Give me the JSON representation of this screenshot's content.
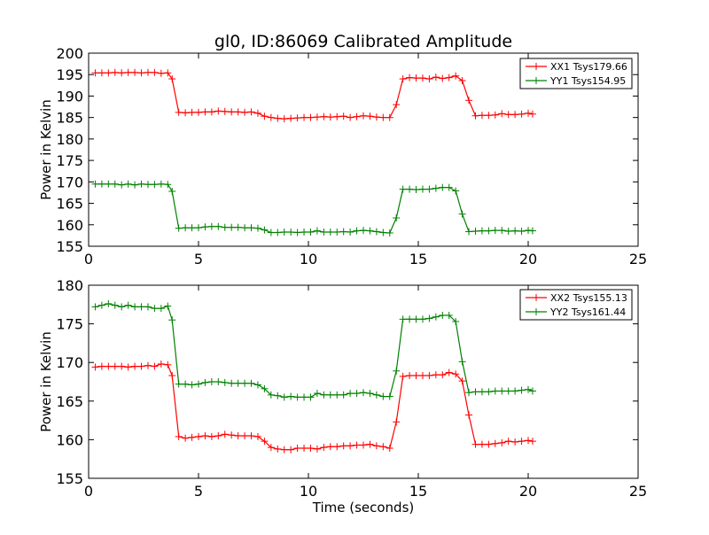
{
  "figure": {
    "title": "gl0, ID:86069 Calibrated Amplitude",
    "background": "#ffffff"
  },
  "chart_data": [
    {
      "type": "line",
      "title": "gl0, ID:86069 Calibrated Amplitude",
      "xlabel": "",
      "ylabel": "Power in Kelvin",
      "xlim": [
        0,
        25
      ],
      "ylim": [
        155,
        200
      ],
      "xticks": [
        0,
        5,
        10,
        15,
        20,
        25
      ],
      "yticks": [
        155,
        160,
        165,
        170,
        175,
        180,
        185,
        190,
        195,
        200
      ],
      "grid": false,
      "legend": "top-right",
      "series": [
        {
          "name": "XX1 Tsys179.66",
          "color": "#ff0000",
          "x": [
            0.3,
            0.6,
            0.9,
            1.2,
            1.5,
            1.8,
            2.1,
            2.4,
            2.7,
            3.0,
            3.3,
            3.6,
            3.8,
            4.1,
            4.4,
            4.7,
            5.0,
            5.3,
            5.6,
            5.9,
            6.2,
            6.5,
            6.8,
            7.1,
            7.4,
            7.7,
            8.0,
            8.3,
            8.6,
            8.9,
            9.2,
            9.5,
            9.8,
            10.1,
            10.4,
            10.7,
            11.0,
            11.3,
            11.6,
            11.9,
            12.2,
            12.5,
            12.8,
            13.1,
            13.4,
            13.7,
            14.0,
            14.3,
            14.6,
            14.9,
            15.2,
            15.5,
            15.8,
            16.1,
            16.4,
            16.7,
            17.0,
            17.3,
            17.6,
            17.9,
            18.2,
            18.5,
            18.8,
            19.1,
            19.4,
            19.7,
            20.0,
            20.2
          ],
          "values": [
            195.4,
            195.4,
            195.4,
            195.5,
            195.4,
            195.5,
            195.5,
            195.4,
            195.5,
            195.5,
            195.3,
            195.4,
            194.0,
            186.2,
            186.1,
            186.2,
            186.2,
            186.3,
            186.3,
            186.5,
            186.4,
            186.3,
            186.3,
            186.2,
            186.3,
            186.0,
            185.3,
            185.0,
            184.8,
            184.7,
            184.8,
            184.9,
            185.0,
            185.0,
            185.1,
            185.2,
            185.1,
            185.2,
            185.3,
            185.0,
            185.2,
            185.4,
            185.3,
            185.1,
            185.0,
            185.0,
            188.0,
            194.0,
            194.3,
            194.2,
            194.2,
            194.0,
            194.4,
            194.1,
            194.3,
            194.7,
            193.6,
            189.0,
            185.4,
            185.5,
            185.5,
            185.6,
            185.9,
            185.7,
            185.7,
            185.8,
            186.0,
            185.8
          ]
        },
        {
          "name": "YY1 Tsys154.95",
          "color": "#008000",
          "x": [
            0.3,
            0.6,
            0.9,
            1.2,
            1.5,
            1.8,
            2.1,
            2.4,
            2.7,
            3.0,
            3.3,
            3.6,
            3.8,
            4.1,
            4.4,
            4.7,
            5.0,
            5.3,
            5.6,
            5.9,
            6.2,
            6.5,
            6.8,
            7.1,
            7.4,
            7.7,
            8.0,
            8.3,
            8.6,
            8.9,
            9.2,
            9.5,
            9.8,
            10.1,
            10.4,
            10.7,
            11.0,
            11.3,
            11.6,
            11.9,
            12.2,
            12.5,
            12.8,
            13.1,
            13.4,
            13.7,
            14.0,
            14.3,
            14.6,
            14.9,
            15.2,
            15.5,
            15.8,
            16.1,
            16.4,
            16.7,
            17.0,
            17.3,
            17.6,
            17.9,
            18.2,
            18.5,
            18.8,
            19.1,
            19.4,
            19.7,
            20.0,
            20.2
          ],
          "values": [
            169.5,
            169.5,
            169.5,
            169.5,
            169.3,
            169.5,
            169.3,
            169.5,
            169.4,
            169.4,
            169.5,
            169.4,
            167.8,
            159.2,
            159.3,
            159.3,
            159.3,
            159.5,
            159.6,
            159.6,
            159.4,
            159.4,
            159.4,
            159.3,
            159.3,
            159.2,
            158.8,
            158.2,
            158.2,
            158.3,
            158.3,
            158.2,
            158.3,
            158.3,
            158.6,
            158.3,
            158.3,
            158.3,
            158.4,
            158.3,
            158.6,
            158.7,
            158.6,
            158.4,
            158.2,
            158.1,
            161.6,
            168.3,
            168.3,
            168.2,
            168.3,
            168.3,
            168.5,
            168.7,
            168.7,
            167.9,
            162.5,
            158.4,
            158.5,
            158.6,
            158.6,
            158.7,
            158.7,
            158.5,
            158.6,
            158.5,
            158.7,
            158.6
          ]
        }
      ]
    },
    {
      "type": "line",
      "title": "",
      "xlabel": "Time (seconds)",
      "ylabel": "Power in Kelvin",
      "xlim": [
        0,
        25
      ],
      "ylim": [
        155,
        180
      ],
      "xticks": [
        0,
        5,
        10,
        15,
        20,
        25
      ],
      "yticks": [
        155,
        160,
        165,
        170,
        175,
        180
      ],
      "grid": false,
      "legend": "top-right",
      "series": [
        {
          "name": "XX2 Tsys155.13",
          "color": "#ff0000",
          "x": [
            0.3,
            0.6,
            0.9,
            1.2,
            1.5,
            1.8,
            2.1,
            2.4,
            2.7,
            3.0,
            3.3,
            3.6,
            3.8,
            4.1,
            4.4,
            4.7,
            5.0,
            5.3,
            5.6,
            5.9,
            6.2,
            6.5,
            6.8,
            7.1,
            7.4,
            7.7,
            8.0,
            8.3,
            8.6,
            8.9,
            9.2,
            9.5,
            9.8,
            10.1,
            10.4,
            10.7,
            11.0,
            11.3,
            11.6,
            11.9,
            12.2,
            12.5,
            12.8,
            13.1,
            13.4,
            13.7,
            14.0,
            14.3,
            14.6,
            14.9,
            15.2,
            15.5,
            15.8,
            16.1,
            16.4,
            16.7,
            17.0,
            17.3,
            17.6,
            17.9,
            18.2,
            18.5,
            18.8,
            19.1,
            19.4,
            19.7,
            20.0,
            20.2
          ],
          "values": [
            169.4,
            169.5,
            169.5,
            169.5,
            169.5,
            169.4,
            169.5,
            169.5,
            169.6,
            169.5,
            169.8,
            169.7,
            168.3,
            160.4,
            160.2,
            160.3,
            160.4,
            160.5,
            160.4,
            160.5,
            160.7,
            160.6,
            160.5,
            160.5,
            160.5,
            160.4,
            159.8,
            159.0,
            158.8,
            158.7,
            158.7,
            158.9,
            158.9,
            158.9,
            158.8,
            159.0,
            159.1,
            159.1,
            159.2,
            159.2,
            159.3,
            159.3,
            159.4,
            159.2,
            159.1,
            158.9,
            162.3,
            168.2,
            168.3,
            168.3,
            168.3,
            168.3,
            168.4,
            168.4,
            168.7,
            168.5,
            167.6,
            163.2,
            159.4,
            159.4,
            159.4,
            159.5,
            159.6,
            159.8,
            159.7,
            159.8,
            159.9,
            159.8
          ]
        },
        {
          "name": "YY2 Tsys161.44",
          "color": "#008000",
          "x": [
            0.3,
            0.6,
            0.9,
            1.2,
            1.5,
            1.8,
            2.1,
            2.4,
            2.7,
            3.0,
            3.3,
            3.6,
            3.8,
            4.1,
            4.4,
            4.7,
            5.0,
            5.3,
            5.6,
            5.9,
            6.2,
            6.5,
            6.8,
            7.1,
            7.4,
            7.7,
            8.0,
            8.3,
            8.6,
            8.9,
            9.2,
            9.5,
            9.8,
            10.1,
            10.4,
            10.7,
            11.0,
            11.3,
            11.6,
            11.9,
            12.2,
            12.5,
            12.8,
            13.1,
            13.4,
            13.7,
            14.0,
            14.3,
            14.6,
            14.9,
            15.2,
            15.5,
            15.8,
            16.1,
            16.4,
            16.7,
            17.0,
            17.3,
            17.6,
            17.9,
            18.2,
            18.5,
            18.8,
            19.1,
            19.4,
            19.7,
            20.0,
            20.2
          ],
          "values": [
            177.2,
            177.4,
            177.6,
            177.4,
            177.2,
            177.4,
            177.2,
            177.2,
            177.2,
            177.0,
            177.0,
            177.3,
            175.5,
            167.2,
            167.2,
            167.1,
            167.2,
            167.4,
            167.5,
            167.5,
            167.4,
            167.3,
            167.3,
            167.3,
            167.3,
            167.1,
            166.6,
            165.8,
            165.7,
            165.5,
            165.6,
            165.5,
            165.5,
            165.5,
            166.0,
            165.8,
            165.8,
            165.8,
            165.8,
            166.0,
            166.0,
            166.1,
            166.0,
            165.8,
            165.6,
            165.6,
            168.9,
            175.6,
            175.6,
            175.6,
            175.6,
            175.7,
            175.9,
            176.1,
            176.1,
            175.3,
            170.1,
            166.1,
            166.2,
            166.2,
            166.2,
            166.3,
            166.3,
            166.3,
            166.3,
            166.4,
            166.5,
            166.3
          ]
        }
      ]
    }
  ]
}
